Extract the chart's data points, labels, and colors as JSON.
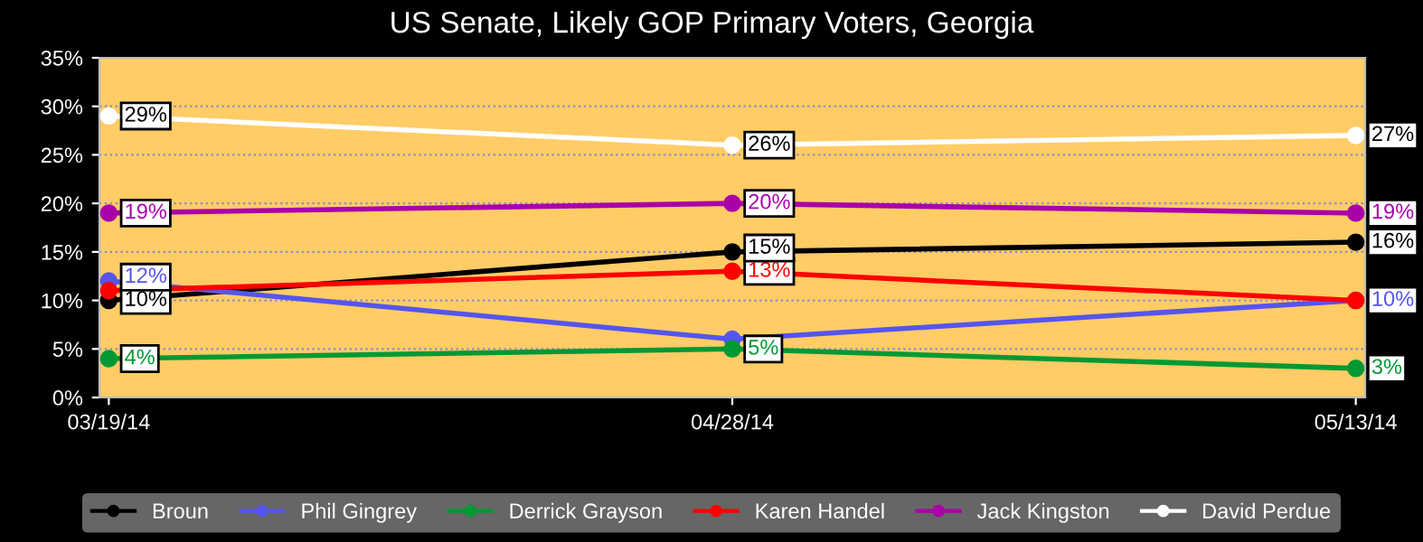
{
  "chart_data": {
    "type": "line",
    "title": "US Senate, Likely GOP Primary Voters, Georgia",
    "categories": [
      "03/19/14",
      "04/28/14",
      "05/13/14"
    ],
    "series": [
      {
        "name": "Broun",
        "color": "#000000",
        "values": [
          10,
          15,
          16
        ],
        "value_labels": [
          "10%",
          "15%",
          "16%"
        ]
      },
      {
        "name": "Phil Gingrey",
        "color": "#5555ee",
        "values": [
          12,
          6,
          10
        ],
        "value_labels": [
          "12%",
          null,
          "10%"
        ]
      },
      {
        "name": "Derrick Grayson",
        "color": "#009933",
        "values": [
          4,
          5,
          3
        ],
        "value_labels": [
          "4%",
          "5%",
          "3%"
        ]
      },
      {
        "name": "Karen Handel",
        "color": "#ff0000",
        "values": [
          11,
          13,
          10
        ],
        "value_labels": [
          null,
          "13%",
          null
        ]
      },
      {
        "name": "Jack Kingston",
        "color": "#aa00aa",
        "values": [
          19,
          20,
          19
        ],
        "value_labels": [
          "19%",
          "20%",
          "19%"
        ]
      },
      {
        "name": "David Perdue",
        "color": "#ffffff",
        "values": [
          29,
          26,
          27
        ],
        "value_labels": [
          "29%",
          "26%",
          "27%"
        ]
      }
    ],
    "ylim": [
      0,
      35
    ],
    "yticks": [
      {
        "value": 0,
        "label": "0%"
      },
      {
        "value": 5,
        "label": "5%"
      },
      {
        "value": 10,
        "label": "10%"
      },
      {
        "value": 15,
        "label": "15%"
      },
      {
        "value": 20,
        "label": "20%"
      },
      {
        "value": 25,
        "label": "25%"
      },
      {
        "value": 30,
        "label": "30%"
      },
      {
        "value": 35,
        "label": "35%"
      }
    ],
    "grid": "y",
    "legend": "bottom",
    "marker": "circle",
    "line_style": "solid"
  }
}
